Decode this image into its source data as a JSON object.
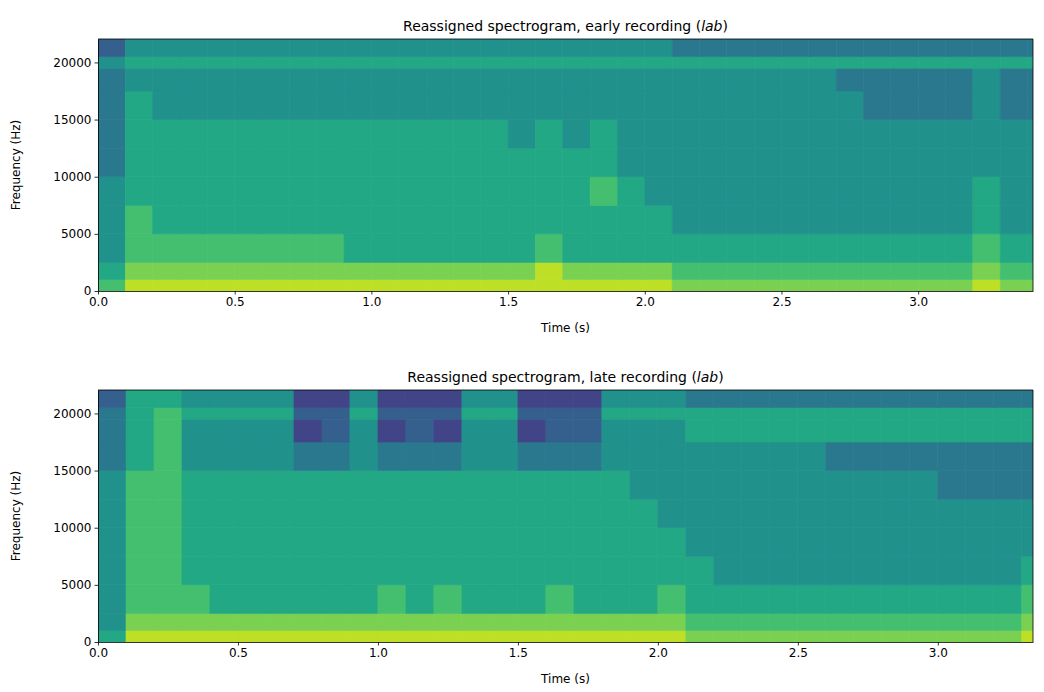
{
  "chart_data": [
    {
      "type": "heatmap",
      "title": "Reassigned spectrogram, early recording (lab)",
      "xlabel": "Time (s)",
      "ylabel": "Frequency (Hz)",
      "xlim": [
        0,
        3.42
      ],
      "ylim": [
        0,
        22050
      ],
      "xticks": [
        {
          "value": 0,
          "label": "0.0"
        },
        0.5,
        {
          "value": 1,
          "label": "1.0"
        },
        1.5,
        {
          "value": 2,
          "label": "2.0"
        },
        2.5,
        {
          "value": 3,
          "label": "3.0"
        }
      ],
      "yticks": [
        0,
        5000,
        10000,
        15000,
        20000
      ],
      "zlim": [
        0,
        10
      ],
      "time_bins": [
        0,
        0.1,
        0.2,
        0.3,
        0.4,
        0.5,
        0.6,
        0.7,
        0.8,
        0.9,
        1.0,
        1.1,
        1.2,
        1.3,
        1.4,
        1.5,
        1.6,
        1.7,
        1.8,
        1.9,
        2.0,
        2.1,
        2.2,
        2.3,
        2.4,
        2.5,
        2.6,
        2.7,
        2.8,
        2.9,
        3.0,
        3.1,
        3.2,
        3.3,
        3.4,
        3.42
      ],
      "freq_bins": [
        0,
        1000,
        2500,
        5000,
        7500,
        10000,
        12500,
        15000,
        17500,
        19500,
        20500,
        22050
      ],
      "cells": [
        [
          7,
          9,
          9,
          9,
          9,
          9,
          9,
          9,
          9,
          9,
          9,
          9,
          9,
          9,
          9,
          9,
          9,
          9,
          9,
          9,
          9,
          8,
          8,
          8,
          8,
          8,
          8,
          8,
          8,
          8,
          8,
          8,
          9,
          8,
          8
        ],
        [
          6,
          8,
          8,
          8,
          8,
          8,
          8,
          8,
          8,
          8,
          8,
          8,
          8,
          8,
          8,
          8,
          9,
          8,
          8,
          8,
          8,
          7,
          7,
          7,
          7,
          7,
          7,
          7,
          7,
          7,
          7,
          7,
          8,
          7,
          7
        ],
        [
          5,
          7,
          7,
          7,
          7,
          7,
          7,
          7,
          7,
          6,
          6,
          6,
          6,
          6,
          6,
          6,
          7,
          6,
          6,
          6,
          6,
          6,
          6,
          6,
          6,
          6,
          6,
          6,
          6,
          6,
          6,
          6,
          7,
          6,
          6
        ],
        [
          5,
          7,
          6,
          6,
          6,
          6,
          6,
          6,
          6,
          6,
          6,
          6,
          6,
          6,
          6,
          6,
          6,
          6,
          6,
          6,
          6,
          5,
          5,
          5,
          5,
          5,
          5,
          5,
          5,
          5,
          5,
          5,
          6,
          5,
          5
        ],
        [
          5,
          6,
          6,
          6,
          6,
          6,
          6,
          6,
          6,
          6,
          6,
          6,
          6,
          6,
          6,
          6,
          6,
          6,
          7,
          6,
          5,
          5,
          5,
          5,
          5,
          5,
          5,
          5,
          5,
          5,
          5,
          5,
          6,
          5,
          5
        ],
        [
          4,
          6,
          6,
          6,
          6,
          6,
          6,
          6,
          6,
          6,
          6,
          6,
          6,
          6,
          6,
          6,
          6,
          6,
          6,
          5,
          5,
          5,
          5,
          5,
          5,
          5,
          5,
          5,
          5,
          5,
          5,
          5,
          5,
          5,
          5
        ],
        [
          4,
          6,
          6,
          6,
          6,
          6,
          6,
          6,
          6,
          6,
          6,
          6,
          6,
          6,
          6,
          5,
          6,
          5,
          6,
          5,
          5,
          5,
          5,
          5,
          5,
          5,
          5,
          5,
          5,
          5,
          5,
          5,
          5,
          5,
          5
        ],
        [
          4,
          6,
          5,
          5,
          5,
          5,
          5,
          5,
          5,
          5,
          5,
          5,
          5,
          5,
          5,
          5,
          5,
          5,
          5,
          5,
          5,
          5,
          5,
          5,
          5,
          5,
          5,
          5,
          4,
          4,
          4,
          4,
          5,
          4,
          4
        ],
        [
          4,
          5,
          5,
          5,
          5,
          5,
          5,
          5,
          5,
          5,
          5,
          5,
          5,
          5,
          5,
          5,
          5,
          5,
          5,
          5,
          5,
          5,
          5,
          5,
          5,
          5,
          5,
          4,
          4,
          4,
          4,
          4,
          5,
          4,
          4
        ],
        [
          5,
          6,
          6,
          6,
          6,
          6,
          6,
          6,
          6,
          6,
          6,
          6,
          6,
          6,
          6,
          6,
          6,
          6,
          6,
          6,
          6,
          6,
          6,
          6,
          6,
          6,
          6,
          6,
          6,
          6,
          6,
          6,
          6,
          6,
          6
        ],
        [
          3,
          5,
          5,
          5,
          5,
          5,
          5,
          5,
          5,
          5,
          5,
          5,
          5,
          5,
          5,
          5,
          5,
          5,
          5,
          5,
          5,
          4,
          4,
          4,
          4,
          4,
          4,
          4,
          4,
          4,
          4,
          4,
          4,
          4,
          4
        ]
      ]
    },
    {
      "type": "heatmap",
      "title": "Reassigned spectrogram, late recording (lab)",
      "xlabel": "Time (s)",
      "ylabel": "Frequency (Hz)",
      "xlim": [
        0,
        3.34
      ],
      "ylim": [
        0,
        22050
      ],
      "xticks": [
        {
          "value": 0,
          "label": "0.0"
        },
        0.5,
        {
          "value": 1,
          "label": "1.0"
        },
        1.5,
        {
          "value": 2,
          "label": "2.0"
        },
        2.5,
        {
          "value": 3,
          "label": "3.0"
        }
      ],
      "yticks": [
        0,
        5000,
        10000,
        15000,
        20000
      ],
      "zlim": [
        0,
        10
      ],
      "time_bins": [
        0,
        0.1,
        0.2,
        0.3,
        0.4,
        0.5,
        0.6,
        0.7,
        0.8,
        0.9,
        1.0,
        1.1,
        1.2,
        1.3,
        1.4,
        1.5,
        1.6,
        1.7,
        1.8,
        1.9,
        2.0,
        2.1,
        2.2,
        2.3,
        2.4,
        2.5,
        2.6,
        2.7,
        2.8,
        2.9,
        3.0,
        3.1,
        3.2,
        3.3,
        3.34
      ],
      "freq_bins": [
        0,
        1000,
        2500,
        5000,
        7500,
        10000,
        12500,
        15000,
        17500,
        19500,
        20500,
        22050
      ],
      "cells": [
        [
          6,
          9,
          9,
          9,
          9,
          9,
          9,
          9,
          9,
          9,
          9,
          9,
          9,
          9,
          9,
          9,
          9,
          9,
          9,
          9,
          9,
          8,
          8,
          8,
          8,
          8,
          8,
          8,
          8,
          8,
          8,
          8,
          8,
          9
        ],
        [
          5,
          8,
          8,
          8,
          8,
          8,
          8,
          8,
          8,
          8,
          8,
          8,
          8,
          8,
          8,
          8,
          8,
          8,
          8,
          8,
          8,
          7,
          7,
          7,
          7,
          7,
          7,
          7,
          7,
          7,
          7,
          7,
          7,
          8
        ],
        [
          5,
          7,
          7,
          7,
          6,
          6,
          6,
          6,
          6,
          6,
          7,
          6,
          7,
          6,
          6,
          6,
          7,
          6,
          6,
          6,
          7,
          6,
          6,
          6,
          6,
          6,
          6,
          6,
          6,
          6,
          6,
          6,
          6,
          7
        ],
        [
          5,
          7,
          7,
          6,
          6,
          6,
          6,
          6,
          6,
          6,
          6,
          6,
          6,
          6,
          6,
          6,
          6,
          6,
          6,
          6,
          6,
          6,
          5,
          5,
          5,
          5,
          5,
          5,
          5,
          5,
          5,
          5,
          5,
          6
        ],
        [
          5,
          7,
          7,
          6,
          6,
          6,
          6,
          6,
          6,
          6,
          6,
          6,
          6,
          6,
          6,
          6,
          6,
          6,
          6,
          6,
          6,
          5,
          5,
          5,
          5,
          5,
          5,
          5,
          5,
          5,
          5,
          5,
          5,
          5
        ],
        [
          5,
          7,
          7,
          6,
          6,
          6,
          6,
          6,
          6,
          6,
          6,
          6,
          6,
          6,
          6,
          6,
          6,
          6,
          6,
          6,
          5,
          5,
          5,
          5,
          5,
          5,
          5,
          5,
          5,
          5,
          5,
          5,
          5,
          5
        ],
        [
          5,
          7,
          7,
          6,
          6,
          6,
          6,
          6,
          6,
          6,
          6,
          6,
          6,
          6,
          6,
          6,
          6,
          6,
          6,
          5,
          5,
          5,
          5,
          5,
          5,
          5,
          5,
          5,
          5,
          5,
          4,
          4,
          4,
          4
        ],
        [
          4,
          6,
          7,
          5,
          5,
          5,
          5,
          4,
          4,
          5,
          4,
          4,
          4,
          5,
          5,
          4,
          4,
          4,
          5,
          5,
          5,
          5,
          5,
          5,
          5,
          5,
          4,
          4,
          4,
          4,
          4,
          4,
          4,
          4
        ],
        [
          4,
          6,
          7,
          5,
          5,
          5,
          5,
          2,
          3,
          5,
          2,
          3,
          2,
          5,
          5,
          2,
          3,
          3,
          5,
          5,
          5,
          6,
          6,
          6,
          6,
          6,
          6,
          6,
          6,
          6,
          6,
          6,
          6,
          6
        ],
        [
          4,
          6,
          7,
          6,
          6,
          6,
          6,
          3,
          3,
          6,
          3,
          3,
          3,
          6,
          6,
          3,
          3,
          3,
          6,
          6,
          6,
          6,
          6,
          6,
          6,
          6,
          6,
          6,
          6,
          6,
          6,
          6,
          6,
          6
        ],
        [
          3,
          6,
          6,
          5,
          5,
          5,
          5,
          2,
          2,
          5,
          2,
          2,
          2,
          5,
          5,
          2,
          2,
          2,
          5,
          5,
          5,
          4,
          4,
          4,
          4,
          4,
          4,
          4,
          4,
          4,
          4,
          4,
          4,
          4
        ]
      ]
    }
  ]
}
